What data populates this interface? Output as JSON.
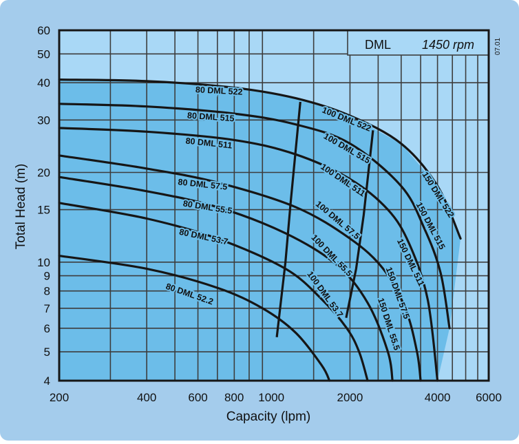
{
  "chart_data": {
    "type": "line",
    "title": "DML",
    "subtitle": "1450 rpm",
    "stamp": "07.01",
    "xlabel": "Capacity  (lpm)",
    "ylabel": "Total Head  (m)",
    "xscale": "log",
    "yscale": "log",
    "xlim": [
      200,
      6000
    ],
    "ylim": [
      4,
      60
    ],
    "xticks": [
      200,
      400,
      600,
      800,
      1000,
      2000,
      4000,
      6000
    ],
    "xtick_labels": [
      "200",
      "400",
      "600",
      "800",
      "1000",
      "2000",
      "4000",
      "6000"
    ],
    "yticks": [
      4,
      5,
      6,
      7,
      8,
      9,
      10,
      15,
      20,
      30,
      40,
      50,
      60
    ],
    "ytick_labels": [
      "4",
      "5",
      "6",
      "7",
      "8",
      "9",
      "10",
      "15",
      "20",
      "30",
      "40",
      "50",
      "60"
    ],
    "grid": true,
    "colors": {
      "frame": "#a4ccec",
      "plot_background": "#a9d8f6",
      "coverage_area": "#6cbde9",
      "gridline": "#3d3d3d",
      "curve": "#161616"
    },
    "series": [
      {
        "name": "80 DML 522",
        "points": [
          [
            200,
            41
          ],
          [
            400,
            40.5
          ],
          [
            800,
            38.5
          ],
          [
            1300,
            35.5
          ],
          [
            2000,
            31
          ],
          [
            3000,
            25
          ],
          [
            4000,
            18
          ],
          [
            4800,
            12
          ]
        ]
      },
      {
        "name": "80 DML 515",
        "points": [
          [
            200,
            34
          ],
          [
            400,
            33.3
          ],
          [
            800,
            31.5
          ],
          [
            1300,
            29
          ],
          [
            2000,
            25
          ],
          [
            3000,
            18
          ],
          [
            3600,
            13
          ],
          [
            4100,
            9.2
          ],
          [
            4400,
            6
          ]
        ]
      },
      {
        "name": "80 DML 511",
        "points": [
          [
            200,
            28.2
          ],
          [
            400,
            27.4
          ],
          [
            800,
            25.7
          ],
          [
            1300,
            23
          ],
          [
            2000,
            19
          ],
          [
            2700,
            15
          ],
          [
            3200,
            11.5
          ],
          [
            3700,
            7.5
          ],
          [
            4000,
            4
          ]
        ]
      },
      {
        "name": "80 DML 57.5",
        "points": [
          [
            200,
            22.8
          ],
          [
            400,
            20.6
          ],
          [
            700,
            18.5
          ],
          [
            1300,
            15.3
          ],
          [
            2000,
            12
          ],
          [
            2600,
            9.5
          ],
          [
            3100,
            7
          ],
          [
            3400,
            5
          ],
          [
            3500,
            4
          ]
        ]
      },
      {
        "name": "80 DML 55.5",
        "points": [
          [
            200,
            19.3
          ],
          [
            400,
            17.3
          ],
          [
            700,
            15.3
          ],
          [
            1200,
            12.5
          ],
          [
            1800,
            9.8
          ],
          [
            2300,
            7.3
          ],
          [
            2700,
            5
          ],
          [
            2800,
            4
          ]
        ]
      },
      {
        "name": "80 DML 53.7",
        "points": [
          [
            200,
            15.8
          ],
          [
            400,
            14
          ],
          [
            700,
            12
          ],
          [
            1200,
            9.5
          ],
          [
            1600,
            7.5
          ],
          [
            1950,
            6
          ],
          [
            2150,
            5
          ],
          [
            2300,
            4
          ]
        ]
      },
      {
        "name": "80 DML 52.2",
        "points": [
          [
            200,
            10.5
          ],
          [
            400,
            9.5
          ],
          [
            700,
            8.2
          ],
          [
            1000,
            7
          ],
          [
            1300,
            5.8
          ],
          [
            1600,
            4.5
          ],
          [
            1700,
            4
          ]
        ]
      }
    ],
    "boundary_series": [
      {
        "name": "100 DML",
        "points": [
          [
            1350,
            34.5
          ],
          [
            1250,
            15.8
          ],
          [
            1200,
            10
          ],
          [
            1120,
            5.6
          ]
        ]
      },
      {
        "name": "150 DML",
        "points": [
          [
            2400,
            27.7
          ],
          [
            2230,
            14.4
          ],
          [
            2100,
            9.5
          ],
          [
            1940,
            6.5
          ]
        ]
      }
    ],
    "curve_labels": [
      "80 DML 522",
      "80 DML 515",
      "80 DML 511",
      "80 DML 57.5",
      "80 DML 55.5",
      "80 DML 53.7",
      "80 DML 52.2",
      "100 DML 522",
      "100 DML 515",
      "100 DML 511",
      "100 DML 57.5",
      "100 DML 55.5",
      "100 DML 53.7",
      "150 DML 522",
      "150 DML 515",
      "150 DML 511",
      "150 DML 57.5",
      "150 DML 55.5"
    ]
  }
}
